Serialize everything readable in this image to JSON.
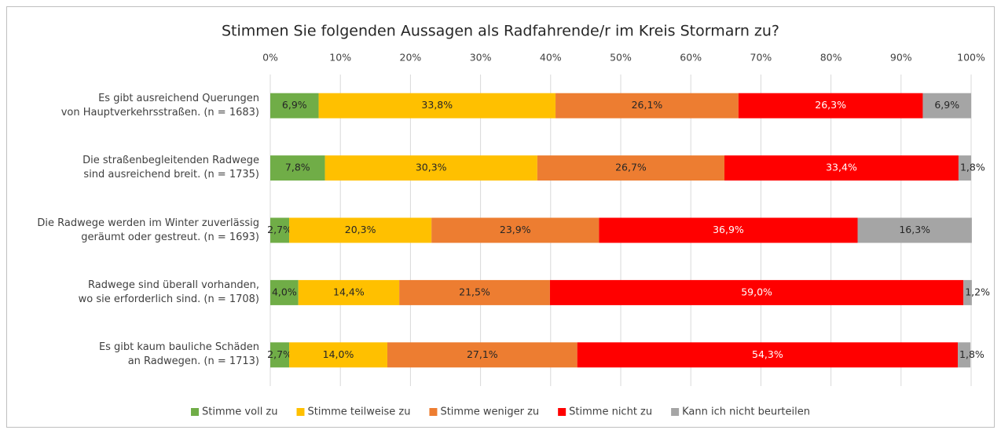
{
  "chart_data": {
    "type": "stacked-barh",
    "title": "Stimmen Sie folgenden Aussagen als Radfahrende/r im Kreis Stormarn zu?",
    "categories": [
      "Es gibt ausreichend Querungen\nvon Hauptverkehrsstraßen. (n = 1683)",
      "Die straßenbegleitenden Radwege\nsind ausreichend breit. (n = 1735)",
      "Die Radwege werden im Winter zuverlässig\ngeräumt oder gestreut. (n = 1693)",
      "Radwege sind überall vorhanden,\nwo sie erforderlich sind. (n = 1708)",
      "Es gibt kaum bauliche Schäden\nan Radwegen. (n = 1713)"
    ],
    "series": [
      {
        "name": "Stimme voll zu",
        "color": "#70ad47",
        "values": [
          6.9,
          7.8,
          2.7,
          4.0,
          2.7
        ],
        "value_labels": [
          "6,9%",
          "7,8%",
          "2,7%",
          "4,0%",
          "2,7%"
        ]
      },
      {
        "name": "Stimme teilweise zu",
        "color": "#ffc000",
        "values": [
          33.8,
          30.3,
          20.3,
          14.4,
          14.0
        ],
        "value_labels": [
          "33,8%",
          "30,3%",
          "20,3%",
          "14,4%",
          "14,0%"
        ]
      },
      {
        "name": "Stimme weniger zu",
        "color": "#ed7d31",
        "values": [
          26.1,
          26.7,
          23.9,
          21.5,
          27.1
        ],
        "value_labels": [
          "26,1%",
          "26,7%",
          "23,9%",
          "21,5%",
          "27,1%"
        ]
      },
      {
        "name": "Stimme nicht zu",
        "color": "#ff0000",
        "values": [
          26.3,
          33.4,
          36.9,
          59.0,
          54.3
        ],
        "value_labels": [
          "26,3%",
          "33,4%",
          "36,9%",
          "59,0%",
          "54,3%"
        ]
      },
      {
        "name": "Kann ich nicht beurteilen",
        "color": "#a5a5a5",
        "values": [
          6.9,
          1.8,
          16.3,
          1.2,
          1.8
        ],
        "value_labels": [
          "6,9%",
          "1,8%",
          "16,3%",
          "1,2%",
          "1,8%"
        ]
      }
    ],
    "xlim": [
      0,
      100
    ],
    "xticks": [
      {
        "value": 0,
        "label": "0%"
      },
      {
        "value": 10,
        "label": "10%"
      },
      {
        "value": 20,
        "label": "20%"
      },
      {
        "value": 30,
        "label": "30%"
      },
      {
        "value": 40,
        "label": "40%"
      },
      {
        "value": 50,
        "label": "50%"
      },
      {
        "value": 60,
        "label": "60%"
      },
      {
        "value": 70,
        "label": "70%"
      },
      {
        "value": 80,
        "label": "80%"
      },
      {
        "value": 90,
        "label": "90%"
      },
      {
        "value": 100,
        "label": "100%"
      }
    ],
    "grid": true,
    "legend": "bottom"
  }
}
